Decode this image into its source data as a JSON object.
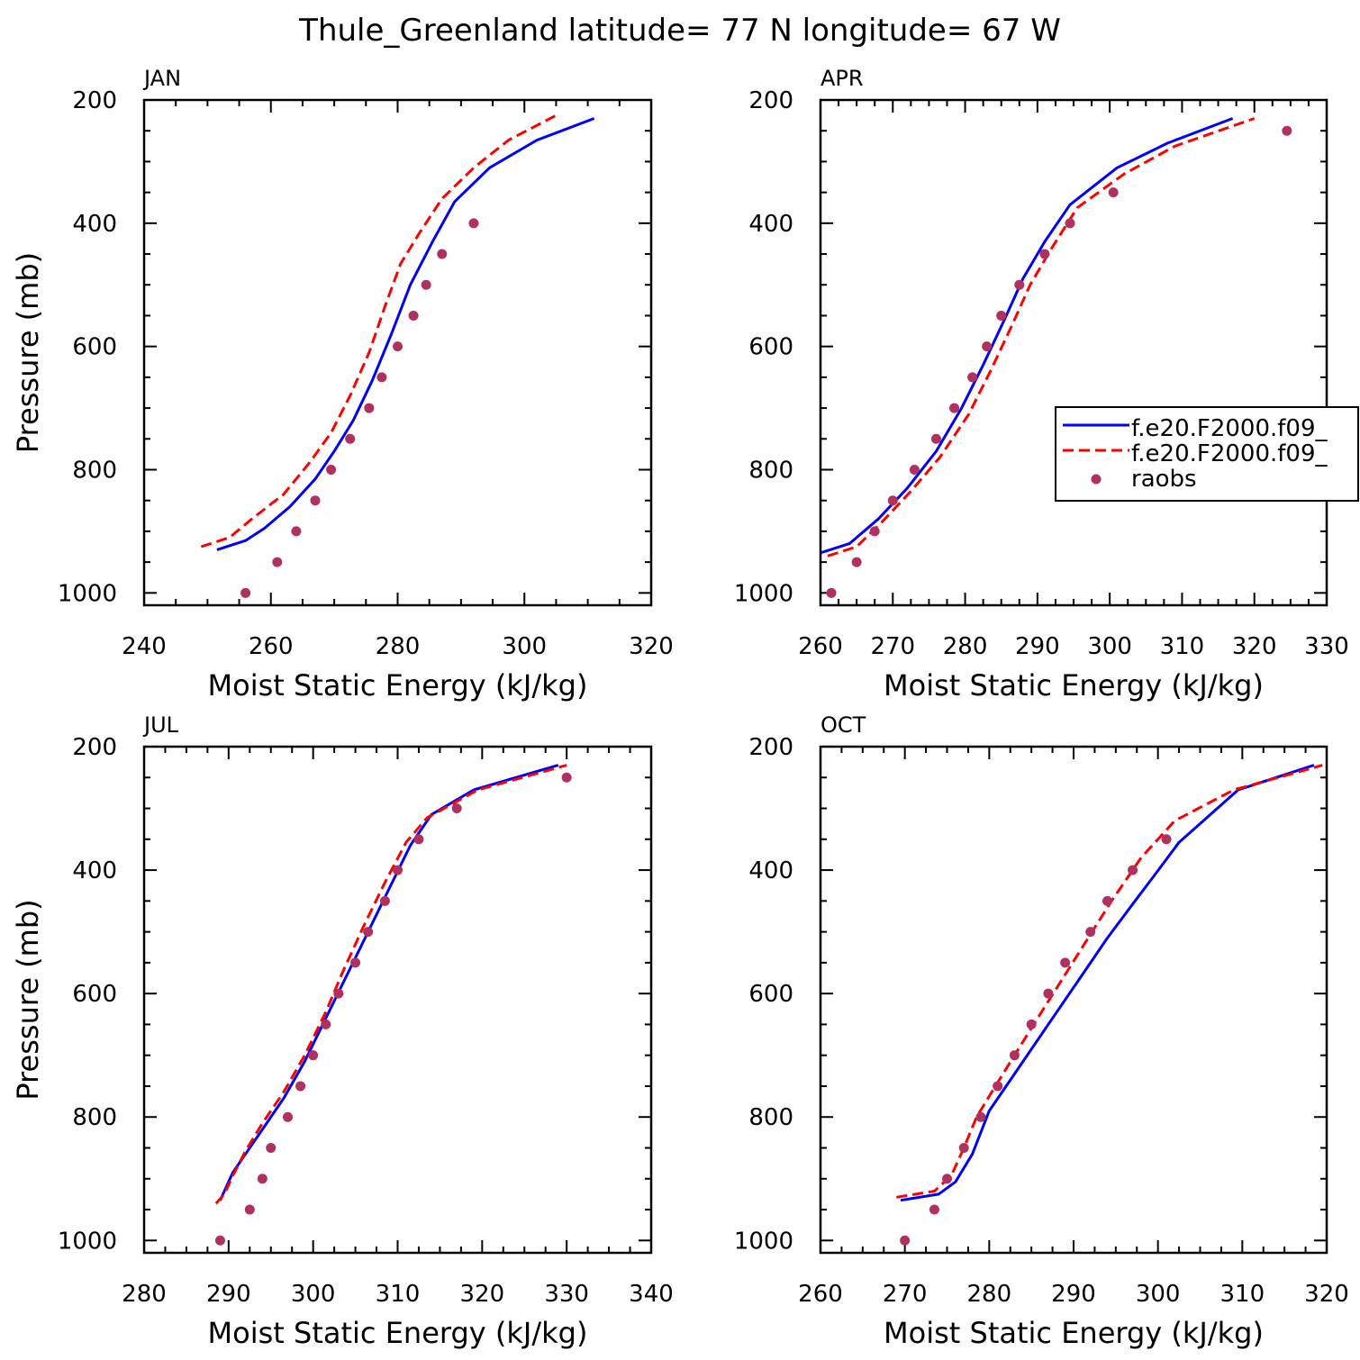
{
  "figure": {
    "title": "Thule_Greenland  latitude= 77 N longitude= 67 W"
  },
  "colors": {
    "model1": "#0000ff",
    "model2": "#ff0000",
    "raobs": "#b03060",
    "axis": "#000000"
  },
  "legend": {
    "entries": [
      {
        "label": "f.e20.F2000.f09_",
        "style": "solid",
        "color": "#0000ff"
      },
      {
        "label": "f.e20.F2000.f09_",
        "style": "dashed",
        "color": "#ff0000"
      },
      {
        "label": "raobs",
        "style": "dot",
        "color": "#b03060"
      }
    ]
  },
  "chart_data": [
    {
      "type": "line",
      "panel": "JAN",
      "xlabel": "Moist Static Energy (kJ/kg)",
      "ylabel": "Pressure (mb)",
      "xlim": [
        240,
        320
      ],
      "ylim": [
        1020,
        200
      ],
      "xticks": [
        240,
        260,
        280,
        300,
        320
      ],
      "yticks": [
        200,
        400,
        600,
        800,
        1000
      ],
      "series": [
        {
          "key": "model1",
          "style": "solid",
          "x": [
            251.5,
            256,
            259,
            263,
            267,
            270,
            273,
            276,
            279,
            282,
            285.5,
            289,
            294.5,
            302,
            311
          ],
          "y": [
            930,
            915,
            895,
            860,
            815,
            770,
            720,
            655,
            580,
            500,
            430,
            365,
            310,
            265,
            230
          ]
        },
        {
          "key": "model2",
          "style": "dashed",
          "x": [
            249,
            253.5,
            257,
            262,
            266,
            269.5,
            272.5,
            275.5,
            278,
            280.5,
            283.5,
            287,
            292,
            297.5,
            305
          ],
          "y": [
            925,
            910,
            880,
            840,
            790,
            740,
            680,
            610,
            535,
            465,
            415,
            360,
            310,
            265,
            225
          ]
        },
        {
          "key": "raobs",
          "style": "dot",
          "x": [
            256,
            261,
            264,
            267,
            269.5,
            272.5,
            275.5,
            277.5,
            280,
            282.5,
            284.5,
            287,
            292
          ],
          "y": [
            1000,
            950,
            900,
            850,
            800,
            750,
            700,
            650,
            600,
            550,
            500,
            450,
            400
          ]
        }
      ]
    },
    {
      "type": "line",
      "panel": "APR",
      "xlabel": "Moist Static Energy (kJ/kg)",
      "ylabel": "",
      "xlim": [
        260,
        330
      ],
      "ylim": [
        1020,
        200
      ],
      "xticks": [
        260,
        270,
        280,
        290,
        300,
        310,
        320,
        330
      ],
      "yticks": [
        200,
        400,
        600,
        800,
        1000
      ],
      "show_legend": true,
      "series": [
        {
          "key": "model1",
          "style": "solid",
          "x": [
            260,
            264,
            268,
            272,
            276,
            279.5,
            282.5,
            285.5,
            288,
            291,
            294.5,
            301,
            308,
            317
          ],
          "y": [
            935,
            920,
            880,
            830,
            770,
            700,
            630,
            555,
            490,
            430,
            370,
            310,
            270,
            230
          ]
        },
        {
          "key": "model2",
          "style": "dashed",
          "x": [
            261,
            265,
            268.5,
            272.5,
            276.5,
            280.5,
            283.5,
            286.5,
            289,
            292,
            295.5,
            302,
            309,
            320
          ],
          "y": [
            940,
            925,
            885,
            835,
            780,
            710,
            640,
            565,
            500,
            440,
            375,
            320,
            275,
            230
          ]
        },
        {
          "key": "raobs",
          "style": "dot",
          "x": [
            261.5,
            265,
            267.5,
            270,
            273,
            276,
            278.5,
            281,
            283,
            285,
            287.5,
            291,
            294.5,
            300.5,
            324.5
          ],
          "y": [
            1000,
            950,
            900,
            850,
            800,
            750,
            700,
            650,
            600,
            550,
            500,
            450,
            400,
            350,
            250
          ]
        }
      ]
    },
    {
      "type": "line",
      "panel": "JUL",
      "xlabel": "Moist Static Energy (kJ/kg)",
      "ylabel": "Pressure (mb)",
      "xlim": [
        280,
        340
      ],
      "ylim": [
        1020,
        200
      ],
      "xticks": [
        280,
        290,
        300,
        310,
        320,
        330,
        340
      ],
      "yticks": [
        200,
        400,
        600,
        800,
        1000
      ],
      "series": [
        {
          "key": "model1",
          "style": "solid",
          "x": [
            289,
            289.5,
            290.5,
            292,
            294,
            296.5,
            299,
            301.5,
            304,
            306.5,
            309,
            311.5,
            314,
            319,
            329
          ],
          "y": [
            935,
            920,
            890,
            860,
            820,
            770,
            710,
            640,
            570,
            500,
            430,
            360,
            310,
            270,
            230
          ]
        },
        {
          "key": "model2",
          "style": "dashed",
          "x": [
            288.5,
            289.5,
            290.5,
            292,
            294,
            296.5,
            299,
            301.5,
            303.5,
            306,
            308.5,
            311,
            313.5,
            319.5,
            330
          ],
          "y": [
            940,
            925,
            895,
            855,
            810,
            760,
            700,
            630,
            565,
            490,
            420,
            355,
            315,
            270,
            230
          ]
        },
        {
          "key": "raobs",
          "style": "dot",
          "x": [
            289,
            292.5,
            294,
            295,
            297,
            298.5,
            300,
            301.5,
            303,
            305,
            306.5,
            308.5,
            310,
            312.5,
            317,
            330
          ],
          "y": [
            1000,
            950,
            900,
            850,
            800,
            750,
            700,
            650,
            600,
            550,
            500,
            450,
            400,
            350,
            300,
            250
          ]
        }
      ]
    },
    {
      "type": "line",
      "panel": "OCT",
      "xlabel": "Moist Static Energy (kJ/kg)",
      "ylabel": "",
      "xlim": [
        260,
        320
      ],
      "ylim": [
        1020,
        200
      ],
      "xticks": [
        260,
        270,
        280,
        290,
        300,
        310,
        320
      ],
      "yticks": [
        200,
        400,
        600,
        800,
        1000
      ],
      "series": [
        {
          "key": "model1",
          "style": "solid",
          "x": [
            269.5,
            274,
            276,
            278,
            280,
            282.5,
            285,
            288,
            291,
            294,
            297,
            299.5,
            302.5,
            309.5,
            318.5
          ],
          "y": [
            935,
            925,
            905,
            860,
            790,
            740,
            690,
            630,
            570,
            510,
            455,
            410,
            355,
            270,
            230
          ]
        },
        {
          "key": "model2",
          "style": "dashed",
          "x": [
            269,
            273.5,
            275.5,
            277,
            278.5,
            280.5,
            283,
            285.5,
            288.5,
            291.5,
            294.5,
            298,
            302,
            309,
            319.5
          ],
          "y": [
            930,
            920,
            895,
            850,
            800,
            755,
            700,
            645,
            580,
            515,
            450,
            380,
            320,
            270,
            230
          ]
        },
        {
          "key": "raobs",
          "style": "dot",
          "x": [
            270,
            273.5,
            275,
            277,
            279,
            281,
            283,
            285,
            287,
            289,
            292,
            294,
            297,
            301
          ],
          "y": [
            1000,
            950,
            900,
            850,
            800,
            750,
            700,
            650,
            600,
            550,
            500,
            450,
            400,
            350
          ]
        }
      ]
    }
  ]
}
